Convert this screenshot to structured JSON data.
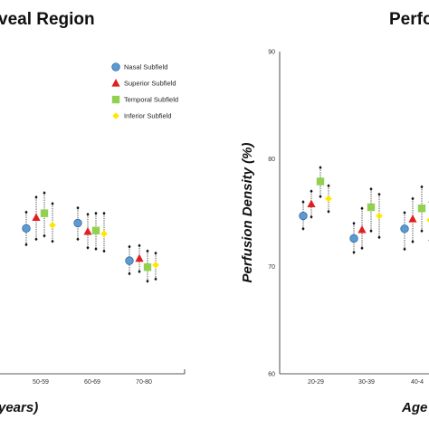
{
  "figure": {
    "left_title": "veal Region",
    "right_title": "Perfo",
    "right_xlabel": "Age",
    "left_xlabel": "years)",
    "right_ylabel": "Perfusion Density (%)"
  },
  "legend": [
    {
      "label": "Nasal Subfield",
      "shape": "circle",
      "color": "#5b9bd5"
    },
    {
      "label": "Superior Subfield",
      "shape": "triangle",
      "color": "#e01f1f"
    },
    {
      "label": "Temporal Subfield",
      "shape": "square",
      "color": "#92d050"
    },
    {
      "label": "Inferior Subfield",
      "shape": "diamond",
      "color": "#ffe600"
    }
  ],
  "chart_data": [
    {
      "type": "scatter",
      "title": "veal Region",
      "xlabel": "years)",
      "ylabel": "",
      "categories": [
        "50-59",
        "60-69",
        "70-80"
      ],
      "series": [
        {
          "name": "Nasal Subfield",
          "values": [
            73.5,
            74.0,
            70.5
          ],
          "lower": [
            72.0,
            72.5,
            69.3
          ],
          "upper": [
            75.0,
            75.4,
            71.8
          ]
        },
        {
          "name": "Superior Subfield",
          "values": [
            74.5,
            73.2,
            70.7
          ],
          "lower": [
            72.5,
            71.7,
            69.5
          ],
          "upper": [
            76.4,
            74.8,
            71.9
          ]
        },
        {
          "name": "Temporal Subfield",
          "values": [
            74.9,
            73.3,
            69.9
          ],
          "lower": [
            72.8,
            71.6,
            68.6
          ],
          "upper": [
            76.8,
            74.9,
            71.4
          ]
        },
        {
          "name": "Inferior Subfield",
          "values": [
            73.8,
            73.0,
            70.1
          ],
          "lower": [
            72.3,
            71.4,
            68.8
          ],
          "upper": [
            75.8,
            74.9,
            71.2
          ]
        }
      ]
    },
    {
      "type": "scatter",
      "title": "Perfo",
      "xlabel": "Age",
      "ylabel": "Perfusion Density (%)",
      "ylim": [
        60,
        90
      ],
      "yticks": [
        60,
        70,
        80,
        90
      ],
      "categories": [
        "20-29",
        "30-39",
        "40-4"
      ],
      "series": [
        {
          "name": "Nasal Subfield",
          "values": [
            74.7,
            72.6,
            73.5
          ],
          "lower": [
            73.5,
            71.3,
            71.6
          ],
          "upper": [
            76.0,
            74.0,
            75.0
          ]
        },
        {
          "name": "Superior Subfield",
          "values": [
            75.8,
            73.4,
            74.4
          ],
          "lower": [
            74.6,
            71.7,
            72.3
          ],
          "upper": [
            77.0,
            75.4,
            76.3
          ]
        },
        {
          "name": "Temporal Subfield",
          "values": [
            77.9,
            75.5,
            75.4
          ],
          "lower": [
            76.5,
            73.3,
            73.3
          ],
          "upper": [
            79.2,
            77.2,
            77.4
          ]
        },
        {
          "name": "Inferior Subfield",
          "values": [
            76.3,
            74.7,
            74.3
          ],
          "lower": [
            75.1,
            72.7,
            72.4
          ],
          "upper": [
            77.5,
            76.7,
            76.0
          ]
        }
      ]
    }
  ]
}
